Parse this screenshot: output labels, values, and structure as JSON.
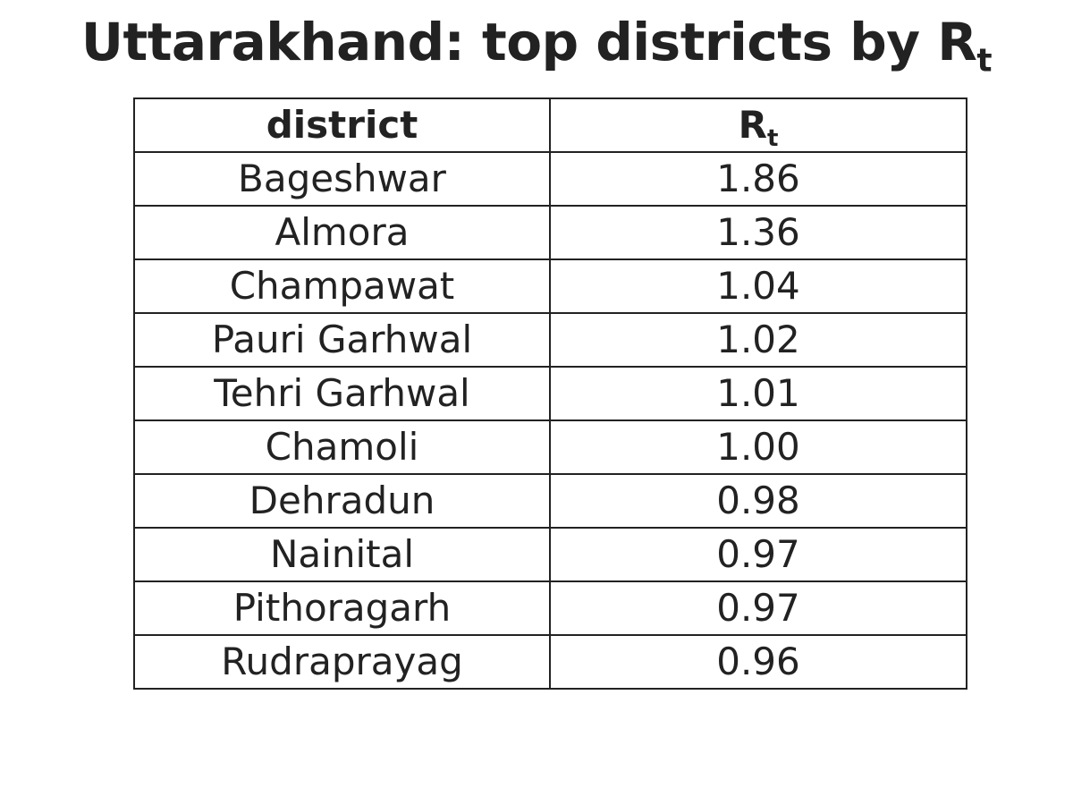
{
  "title": {
    "main": "Uttarakhand: top districts by R",
    "subscript": "t"
  },
  "chart_data": {
    "type": "table",
    "columns": [
      {
        "label": "district"
      },
      {
        "label": "R",
        "subscript": "t"
      }
    ],
    "rows": [
      [
        "Bageshwar",
        "1.86"
      ],
      [
        "Almora",
        "1.36"
      ],
      [
        "Champawat",
        "1.04"
      ],
      [
        "Pauri Garhwal",
        "1.02"
      ],
      [
        "Tehri Garhwal",
        "1.01"
      ],
      [
        "Chamoli",
        "1.00"
      ],
      [
        "Dehradun",
        "0.98"
      ],
      [
        "Nainital",
        "0.97"
      ],
      [
        "Pithoragarh",
        "0.97"
      ],
      [
        "Rudraprayag",
        "0.96"
      ]
    ]
  }
}
